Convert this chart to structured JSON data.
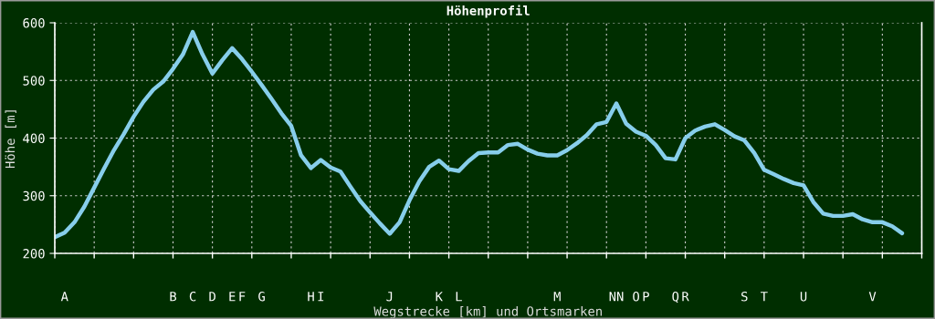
{
  "chart_data": {
    "type": "line",
    "title": "Höhenprofil",
    "xlabel": "Wegstrecke [km] und Ortsmarken",
    "ylabel": "Höhe [m]",
    "categories": [
      null,
      "A",
      null,
      null,
      null,
      null,
      null,
      null,
      null,
      null,
      null,
      null,
      "B",
      null,
      "C",
      null,
      "D",
      null,
      "E",
      "F",
      null,
      "G",
      null,
      null,
      null,
      null,
      "H",
      "I",
      null,
      null,
      null,
      null,
      null,
      null,
      "J",
      null,
      null,
      null,
      null,
      "K",
      null,
      "L",
      null,
      null,
      null,
      null,
      null,
      null,
      null,
      null,
      null,
      "M",
      null,
      null,
      null,
      null,
      null,
      "NN",
      null,
      "O",
      "P",
      null,
      null,
      "Q",
      "R",
      null,
      null,
      null,
      null,
      null,
      "S",
      null,
      "T",
      null,
      null,
      null,
      "U",
      null,
      null,
      null,
      null,
      null,
      null,
      "V",
      null,
      null,
      null,
      null,
      null
    ],
    "series": [
      {
        "color": "#87ceeb",
        "values": [
          228,
          236,
          254,
          281,
          314,
          347,
          379,
          407,
          437,
          463,
          484,
          498,
          520,
          545,
          584,
          545,
          512,
          535,
          556,
          537,
          515,
          492,
          468,
          443,
          421,
          370,
          348,
          362,
          349,
          342,
          316,
          291,
          271,
          252,
          234,
          254,
          292,
          325,
          350,
          361,
          346,
          343,
          360,
          374,
          375,
          375,
          388,
          390,
          380,
          373,
          370,
          370,
          379,
          391,
          405,
          424,
          428,
          460,
          425,
          411,
          404,
          388,
          365,
          363,
          400,
          413,
          420,
          424,
          414,
          403,
          396,
          374,
          345,
          337,
          329,
          322,
          318,
          289,
          269,
          265,
          265,
          268,
          259,
          254,
          254,
          247,
          235,
          null,
          null
        ]
      }
    ],
    "ylim": [
      200,
      600
    ],
    "yticks": [
      200,
      300,
      400,
      500,
      600
    ],
    "grid": true,
    "marker": "none",
    "line_style": "solid"
  }
}
